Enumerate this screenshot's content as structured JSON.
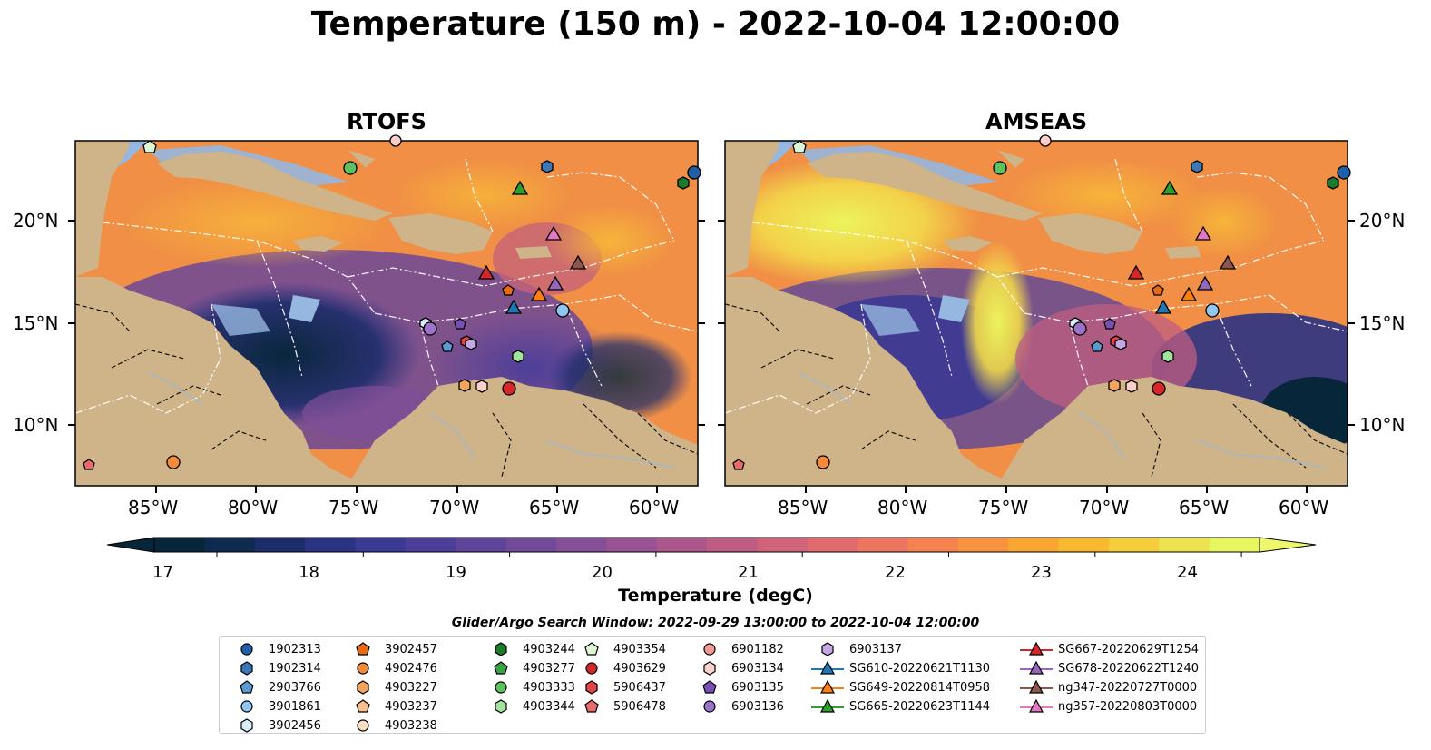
{
  "title": "Temperature (150 m) - 2022-10-04 12:00:00",
  "panels": [
    {
      "id": "rtofs",
      "title": "RTOFS"
    },
    {
      "id": "amseas",
      "title": "AMSEAS"
    }
  ],
  "axes": {
    "lat_ticks": [
      "20°N",
      "15°N",
      "10°N"
    ],
    "lon_ticks": [
      "85°W",
      "80°W",
      "75°W",
      "70°W",
      "65°W",
      "60°W"
    ]
  },
  "colorbar": {
    "label": "Temperature (degC)",
    "ticks": [
      "17",
      "18",
      "19",
      "20",
      "21",
      "22",
      "23",
      "24"
    ],
    "colors": [
      "#08263a",
      "#0f2a4f",
      "#1d2d6b",
      "#2b3383",
      "#3b3a93",
      "#4d3e99",
      "#5f4599",
      "#714b99",
      "#844f97",
      "#985392",
      "#ab578c",
      "#bf5c83",
      "#d0627a",
      "#e06a6d",
      "#ec755f",
      "#f5824f",
      "#f8923f",
      "#f9a531",
      "#f8b82f",
      "#f3cd3a",
      "#ebe24e",
      "#e7f65f"
    ]
  },
  "search_window": "Glider/Argo Search Window: 2022-09-29 13:00:00 to 2022-10-04 12:00:00",
  "legend": {
    "columns": [
      [
        {
          "label": "1902313",
          "marker": "circle",
          "color": "#1f5fa6"
        },
        {
          "label": "1902314",
          "marker": "hexagon",
          "color": "#3c78b5"
        },
        {
          "label": "2903766",
          "marker": "pentagon",
          "color": "#5b9bd0"
        },
        {
          "label": "3901861",
          "marker": "circle",
          "color": "#8fc7ee"
        },
        {
          "label": "3902456",
          "marker": "hexagon",
          "color": "#d9eefb"
        }
      ],
      [
        {
          "label": "3902457",
          "marker": "pentagon",
          "color": "#e86a12"
        },
        {
          "label": "4902476",
          "marker": "circle",
          "color": "#f48a3a"
        },
        {
          "label": "4903227",
          "marker": "hexagon",
          "color": "#f5a45c"
        },
        {
          "label": "4903237",
          "marker": "pentagon",
          "color": "#f8c08a"
        },
        {
          "label": "4903238",
          "marker": "circle",
          "color": "#fde0c2"
        }
      ],
      [
        {
          "label": "4903244",
          "marker": "hexagon",
          "color": "#1c7a2b"
        },
        {
          "label": "4903277",
          "marker": "pentagon",
          "color": "#3aa345"
        },
        {
          "label": "4903333",
          "marker": "circle",
          "color": "#5fc05f"
        },
        {
          "label": "4903344",
          "marker": "hexagon",
          "color": "#a4e2a0"
        }
      ],
      [
        {
          "label": "4903354",
          "marker": "pentagon",
          "color": "#dcf7d6"
        },
        {
          "label": "4903629",
          "marker": "circle",
          "color": "#d62728"
        },
        {
          "label": "5906437",
          "marker": "hexagon",
          "color": "#e04545"
        },
        {
          "label": "5906478",
          "marker": "pentagon",
          "color": "#ea6a6a"
        }
      ],
      [
        {
          "label": "6901182",
          "marker": "circle",
          "color": "#f29a94"
        },
        {
          "label": "6903134",
          "marker": "hexagon",
          "color": "#fbcfcb"
        },
        {
          "label": "6903135",
          "marker": "pentagon",
          "color": "#7a4fb3"
        },
        {
          "label": "6903136",
          "marker": "circle",
          "color": "#9b74c9"
        }
      ],
      [
        {
          "label": "6903137",
          "marker": "hexagon",
          "color": "#c3a8e3"
        },
        {
          "label": "SG610-20220621T1130",
          "marker": "triangle",
          "color": "#1f77b4"
        },
        {
          "label": "SG649-20220814T0958",
          "marker": "triangle",
          "color": "#ff7f0e"
        },
        {
          "label": "SG665-20220623T1144",
          "marker": "triangle",
          "color": "#2ca02c"
        }
      ],
      [
        {
          "label": "SG667-20220629T1254",
          "marker": "triangle",
          "color": "#d62728"
        },
        {
          "label": "SG678-20220622T1240",
          "marker": "triangle",
          "color": "#9467bd"
        },
        {
          "label": "ng347-20220727T0000",
          "marker": "triangle",
          "color": "#8c564b"
        },
        {
          "label": "ng357-20220803T0000",
          "marker": "triangle",
          "color": "#e377c2"
        }
      ]
    ]
  }
}
